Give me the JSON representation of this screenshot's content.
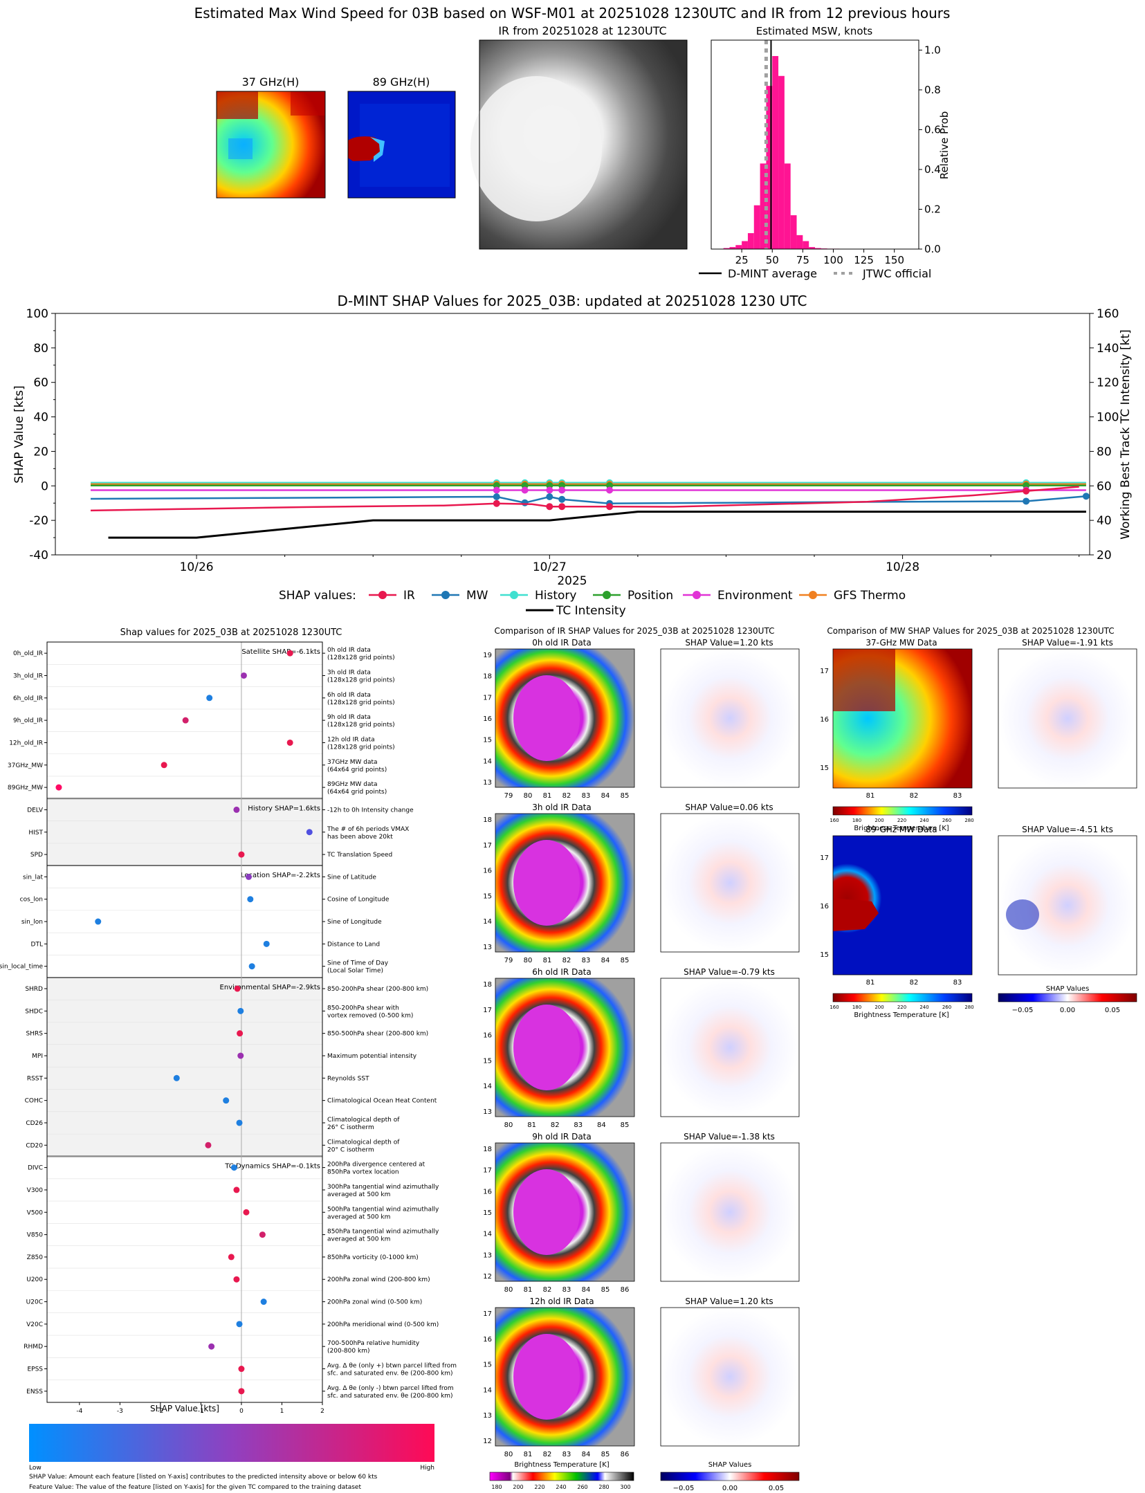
{
  "colors": {
    "ir": "#e8184f",
    "mw": "#1f77b4",
    "history": "#40e0d0",
    "position": "#2ca02c",
    "environment": "#e133d6",
    "gfs": "#f08020",
    "tc": "#000000",
    "hist_bar": "#ff1493",
    "jtwc": "#a0a0a0"
  },
  "top": {
    "title": "Estimated Max Wind Speed for 03B based on WSF-M01 at 20251028 1230UTC and IR from 12 previous hours",
    "p37_title": "37 GHz(H)",
    "p89_title": "89 GHz(H)",
    "ir_title": "IR from 20251028 at 1230UTC",
    "hist_title": "Estimated MSW, knots",
    "hist_ylabel": "Relative Prob",
    "legend_dmint": "D-MINT average",
    "legend_jtwc": "JTWC official"
  },
  "timeseries": {
    "title": "D-MINT SHAP Values for 2025_03B: updated at 20251028 1230 UTC",
    "ylabel_left": "SHAP Value [kts]",
    "ylabel_right": "Working Best Track TC Intensity [kt]",
    "xlabel": "2025",
    "legend_title": "SHAP values:",
    "legend": [
      "IR",
      "MW",
      "History",
      "Position",
      "Environment",
      "GFS Thermo",
      "TC Intensity"
    ]
  },
  "shap_panel": {
    "title": "Shap values for 2025_03B at 20251028 1230UTC",
    "xlabel": "SHAP Value [kts]",
    "groups": [
      {
        "label": "Satellite SHAP=-6.1kts",
        "shade": false
      },
      {
        "label": "History SHAP=1.6kts",
        "shade": true
      },
      {
        "label": "Location SHAP=-2.2kts",
        "shade": false
      },
      {
        "label": "Environmental SHAP=-2.9kts",
        "shade": true
      },
      {
        "label": "TC Dynamics SHAP=-0.1kts",
        "shade": false
      }
    ],
    "features": [
      {
        "name": "0h_old_IR",
        "desc": [
          "0h old IR data",
          "(128x128 grid points)"
        ],
        "value": 1.2,
        "color": "#e8184f",
        "group": 0
      },
      {
        "name": "3h_old_IR",
        "desc": [
          "3h old IR data",
          "(128x128 grid points)"
        ],
        "value": 0.06,
        "color": "#9b30b0",
        "group": 0
      },
      {
        "name": "6h_old_IR",
        "desc": [
          "6h old IR data",
          "(128x128 grid points)"
        ],
        "value": -0.79,
        "color": "#1e7fe0",
        "group": 0
      },
      {
        "name": "9h_old_IR",
        "desc": [
          "9h old IR data",
          "(128x128 grid points)"
        ],
        "value": -1.38,
        "color": "#d2206a",
        "group": 0
      },
      {
        "name": "12h_old_IR",
        "desc": [
          "12h old IR data",
          "(128x128 grid points)"
        ],
        "value": 1.2,
        "color": "#e8184f",
        "group": 0
      },
      {
        "name": "37GHz_MW",
        "desc": [
          "37GHz MW data",
          "(64x64 grid points)"
        ],
        "value": -1.91,
        "color": "#e8184f",
        "group": 0
      },
      {
        "name": "89GHz_MW",
        "desc": [
          "89GHz MW data",
          "(64x64 grid points)"
        ],
        "value": -4.51,
        "color": "#ff0a64",
        "group": 0
      },
      {
        "name": "DELV",
        "desc": [
          "-12h to 0h Intensity change"
        ],
        "value": -0.12,
        "color": "#9b30b0",
        "group": 1
      },
      {
        "name": "HIST",
        "desc": [
          "The # of 6h periods VMAX",
          "has been above 20kt"
        ],
        "value": 1.68,
        "color": "#5050e0",
        "group": 1
      },
      {
        "name": "SPD",
        "desc": [
          "TC Translation Speed"
        ],
        "value": 0.0,
        "color": "#e8184f",
        "group": 1
      },
      {
        "name": "sin_lat",
        "desc": [
          "Sine of Latitude"
        ],
        "value": 0.18,
        "color": "#8a3cc0",
        "group": 2
      },
      {
        "name": "cos_lon",
        "desc": [
          "Cosine of Longitude"
        ],
        "value": 0.22,
        "color": "#1e7fe0",
        "group": 2
      },
      {
        "name": "sin_lon",
        "desc": [
          "Sine of Longitude"
        ],
        "value": -3.54,
        "color": "#1e7fe0",
        "group": 2
      },
      {
        "name": "DTL",
        "desc": [
          "Distance to Land"
        ],
        "value": 0.62,
        "color": "#1e7fe0",
        "group": 2
      },
      {
        "name": "sin_local_time",
        "desc": [
          "Sine of Time of Day",
          "(Local Solar Time)"
        ],
        "value": 0.26,
        "color": "#1e7fe0",
        "group": 2
      },
      {
        "name": "SHRD",
        "desc": [
          "850-200hPa shear (200-800 km)"
        ],
        "value": -0.1,
        "color": "#e8184f",
        "group": 3
      },
      {
        "name": "SHDC",
        "desc": [
          "850-200hPa shear with",
          "vortex removed (0-500 km)"
        ],
        "value": -0.02,
        "color": "#1e7fe0",
        "group": 3
      },
      {
        "name": "SHRS",
        "desc": [
          "850-500hPa shear (200-800 km)"
        ],
        "value": -0.04,
        "color": "#e8184f",
        "group": 3
      },
      {
        "name": "MPI",
        "desc": [
          "Maximum potential intensity"
        ],
        "value": -0.02,
        "color": "#9b30b0",
        "group": 3
      },
      {
        "name": "RSST",
        "desc": [
          "Reynolds SST"
        ],
        "value": -1.6,
        "color": "#1e7fe0",
        "group": 3
      },
      {
        "name": "COHC",
        "desc": [
          "Climatological Ocean Heat Content"
        ],
        "value": -0.38,
        "color": "#1e7fe0",
        "group": 3
      },
      {
        "name": "CD26",
        "desc": [
          "Climatological depth of",
          "26° C isotherm"
        ],
        "value": -0.05,
        "color": "#1e7fe0",
        "group": 3
      },
      {
        "name": "CD20",
        "desc": [
          "Climatological depth of",
          "20° C isotherm"
        ],
        "value": -0.82,
        "color": "#d2206a",
        "group": 3
      },
      {
        "name": "DIVC",
        "desc": [
          "200hPa divergence centered at",
          "850hPa vortex location"
        ],
        "value": -0.18,
        "color": "#1e7fe0",
        "group": 4
      },
      {
        "name": "V300",
        "desc": [
          "300hPa tangential wind azimuthally",
          "averaged at 500 km"
        ],
        "value": -0.12,
        "color": "#e8184f",
        "group": 4
      },
      {
        "name": "V500",
        "desc": [
          "500hPa tangential wind azimuthally",
          "averaged at 500 km"
        ],
        "value": 0.12,
        "color": "#e8184f",
        "group": 4
      },
      {
        "name": "V850",
        "desc": [
          "850hPa tangential wind azimuthally",
          "averaged at 500 km"
        ],
        "value": 0.52,
        "color": "#d2206a",
        "group": 4
      },
      {
        "name": "Z850",
        "desc": [
          "850hPa vorticity (0-1000 km)"
        ],
        "value": -0.25,
        "color": "#e8184f",
        "group": 4
      },
      {
        "name": "U200",
        "desc": [
          "200hPa zonal wind (200-800 km)"
        ],
        "value": -0.12,
        "color": "#e8184f",
        "group": 4
      },
      {
        "name": "U20C",
        "desc": [
          "200hPa zonal wind (0-500 km)"
        ],
        "value": 0.55,
        "color": "#1e7fe0",
        "group": 4
      },
      {
        "name": "V20C",
        "desc": [
          "200hPa meridional wind (0-500 km)"
        ],
        "value": -0.05,
        "color": "#1e7fe0",
        "group": 4
      },
      {
        "name": "RHMD",
        "desc": [
          "700-500hPa relative humidity",
          "(200-800 km)"
        ],
        "value": -0.74,
        "color": "#9b30b0",
        "group": 4
      },
      {
        "name": "EPSS",
        "desc": [
          "Avg. Δ θe (only +) btwn parcel lifted from",
          "sfc. and saturated env. θe (200-800 km)"
        ],
        "value": 0.0,
        "color": "#e8184f",
        "group": 4
      },
      {
        "name": "ENSS",
        "desc": [
          "Avg. Δ θe (only -) btwn parcel lifted from",
          "sfc. and saturated env. θe (200-800 km)"
        ],
        "value": 0.0,
        "color": "#e8184f",
        "group": 4
      }
    ],
    "cbar_low": "Low",
    "cbar_high": "High",
    "footer1": "SHAP Value: Amount each feature [listed on Y-axis] contributes to the predicted intensity above or below 60 kts",
    "footer2": "Feature Value: The value of the feature [listed on Y-axis] for the given TC compared to the training dataset"
  },
  "ir_compare": {
    "title": "Comparison of IR SHAP Values for 2025_03B at 20251028 1230UTC",
    "rows": [
      {
        "label": "0h old IR Data",
        "shap": "SHAP Value=1.20 kts",
        "yticks": [
          "19",
          "18",
          "17",
          "16",
          "15",
          "14",
          "13"
        ],
        "xticks": [
          "79",
          "80",
          "81",
          "82",
          "83",
          "84",
          "85"
        ]
      },
      {
        "label": "3h old IR Data",
        "shap": "SHAP Value=0.06 kts",
        "yticks": [
          "18",
          "17",
          "16",
          "15",
          "14",
          "13"
        ],
        "xticks": [
          "79",
          "80",
          "81",
          "82",
          "83",
          "84",
          "85"
        ]
      },
      {
        "label": "6h old IR Data",
        "shap": "SHAP Value=-0.79 kts",
        "yticks": [
          "18",
          "17",
          "16",
          "15",
          "14",
          "13"
        ],
        "xticks": [
          "80",
          "81",
          "82",
          "83",
          "84",
          "85"
        ]
      },
      {
        "label": "9h old IR Data",
        "shap": "SHAP Value=-1.38 kts",
        "yticks": [
          "18",
          "17",
          "16",
          "15",
          "14",
          "13",
          "12"
        ],
        "xticks": [
          "80",
          "81",
          "82",
          "83",
          "84",
          "85",
          "86"
        ]
      },
      {
        "label": "12h old IR Data",
        "shap": "SHAP Value=1.20 kts",
        "yticks": [
          "17",
          "16",
          "15",
          "14",
          "13",
          "12"
        ],
        "xticks": [
          "80",
          "81",
          "82",
          "83",
          "84",
          "85",
          "86"
        ]
      }
    ],
    "bt_label": "Brightness Temperature [K]",
    "bt_ticks": [
      "180",
      "200",
      "220",
      "240",
      "260",
      "280",
      "300"
    ],
    "shap_label": "SHAP Values",
    "shap_ticks": [
      "−0.05",
      "0.00",
      "0.05"
    ]
  },
  "mw_compare": {
    "title": "Comparison of MW SHAP Values for 2025_03B at 20251028 1230UTC",
    "rows": [
      {
        "label": "37-GHz MW Data",
        "shap": "SHAP Value=-1.91 kts"
      },
      {
        "label": "89-GHz MW Data",
        "shap": "SHAP Value=-4.51 kts"
      }
    ],
    "yticks": [
      "17",
      "16",
      "15"
    ],
    "xticks": [
      "81",
      "82",
      "83"
    ],
    "bt_label": "Brightness Temperature [K]",
    "bt_ticks": [
      "160",
      "180",
      "200",
      "220",
      "240",
      "260",
      "280"
    ],
    "shap_label": "SHAP Values",
    "shap_ticks": [
      "−0.05",
      "0.00",
      "0.05"
    ]
  },
  "chart_data": [
    {
      "type": "bar",
      "title": "Estimated MSW, knots",
      "ylabel": "Relative Prob",
      "xlim": [
        0,
        170
      ],
      "ylim": [
        0,
        1.05
      ],
      "xticks": [
        25,
        50,
        75,
        100,
        125,
        150
      ],
      "yticks": [
        0.0,
        0.2,
        0.4,
        0.6,
        0.8,
        1.0
      ],
      "bin_width": 5,
      "bin_starts": [
        10,
        15,
        20,
        25,
        30,
        35,
        40,
        45,
        50,
        55,
        60,
        65,
        70,
        75,
        80,
        85,
        90,
        95,
        100,
        105,
        110,
        115,
        120,
        125,
        130,
        135,
        140,
        145,
        150,
        155,
        160,
        165
      ],
      "values": [
        0.005,
        0.01,
        0.02,
        0.04,
        0.08,
        0.22,
        0.43,
        0.82,
        0.97,
        0.87,
        0.43,
        0.17,
        0.07,
        0.04,
        0.01,
        0.005,
        0.003,
        0.002,
        0.002,
        0.001,
        0.001,
        0.001,
        0.001,
        0.001,
        0.001,
        0.001,
        0.001,
        0.001,
        0.001,
        0.001,
        0.001,
        0.001
      ],
      "dmint_average": 49,
      "jtwc_official": 45
    },
    {
      "type": "line",
      "title": "D-MINT SHAP Values for 2025_03B: updated at 20251028 1230 UTC",
      "ylabel": "SHAP Value [kts]",
      "ylabel_right": "Working Best Track TC Intensity [kt]",
      "xlabel": "2025",
      "ylim": [
        -40,
        100
      ],
      "ylim_right": [
        20,
        160
      ],
      "x_ticks": [
        "10/26",
        "10/27",
        "10/28"
      ],
      "series": [
        {
          "name": "IR",
          "x": [
            -0.3,
            0.0,
            0.3,
            0.7,
            0.85,
            0.95,
            1.0,
            1.15,
            1.35,
            1.9,
            2.2,
            2.5
          ],
          "y": [
            -14.3,
            -13.3,
            -12.3,
            -11.4,
            -10.2,
            -10.6,
            -12.0,
            -12.0,
            -12.1,
            -9.2,
            -5.5,
            -0.5
          ],
          "marker_x": [
            0.85,
            1.0,
            1.035,
            1.17,
            2.35
          ]
        },
        {
          "name": "MW",
          "x": [
            -0.3,
            0.2,
            0.85,
            0.93,
            1.0,
            1.035,
            1.17,
            1.5,
            2.0,
            2.35,
            2.52
          ],
          "y": [
            -7.5,
            -7.0,
            -6.3,
            -9.8,
            -6.3,
            -7.8,
            -10.2,
            -9.8,
            -9.2,
            -8.9,
            -6.0
          ],
          "marker_x": [
            0.85,
            0.93,
            1.0,
            1.035,
            1.17,
            2.35,
            2.52
          ]
        },
        {
          "name": "History",
          "x": [
            -0.3,
            2.52
          ],
          "y": [
            1.8,
            1.8
          ],
          "marker_x": [
            0.85,
            0.93,
            1.0,
            1.035,
            1.17,
            2.35
          ]
        },
        {
          "name": "Position",
          "x": [
            -0.3,
            2.52
          ],
          "y": [
            0.2,
            0.2
          ],
          "marker_x": [
            0.85,
            0.93,
            1.0,
            1.035,
            1.17,
            2.35
          ]
        },
        {
          "name": "Environment",
          "x": [
            -0.3,
            2.52
          ],
          "y": [
            -2.5,
            -2.5
          ],
          "marker_x": [
            0.85,
            0.93,
            1.0,
            1.035,
            1.17,
            2.35
          ]
        },
        {
          "name": "GFS Thermo",
          "x": [
            -0.3,
            2.52
          ],
          "y": [
            1.0,
            1.0
          ],
          "marker_x": [
            0.85,
            0.93,
            1.0,
            1.035,
            1.17,
            2.35
          ]
        },
        {
          "name": "TC Intensity",
          "x": [
            -0.25,
            0.0,
            0.5,
            0.75,
            1.0,
            1.25,
            2.52
          ],
          "y_right": [
            30,
            30,
            40,
            40,
            40,
            45,
            45
          ]
        }
      ]
    }
  ]
}
